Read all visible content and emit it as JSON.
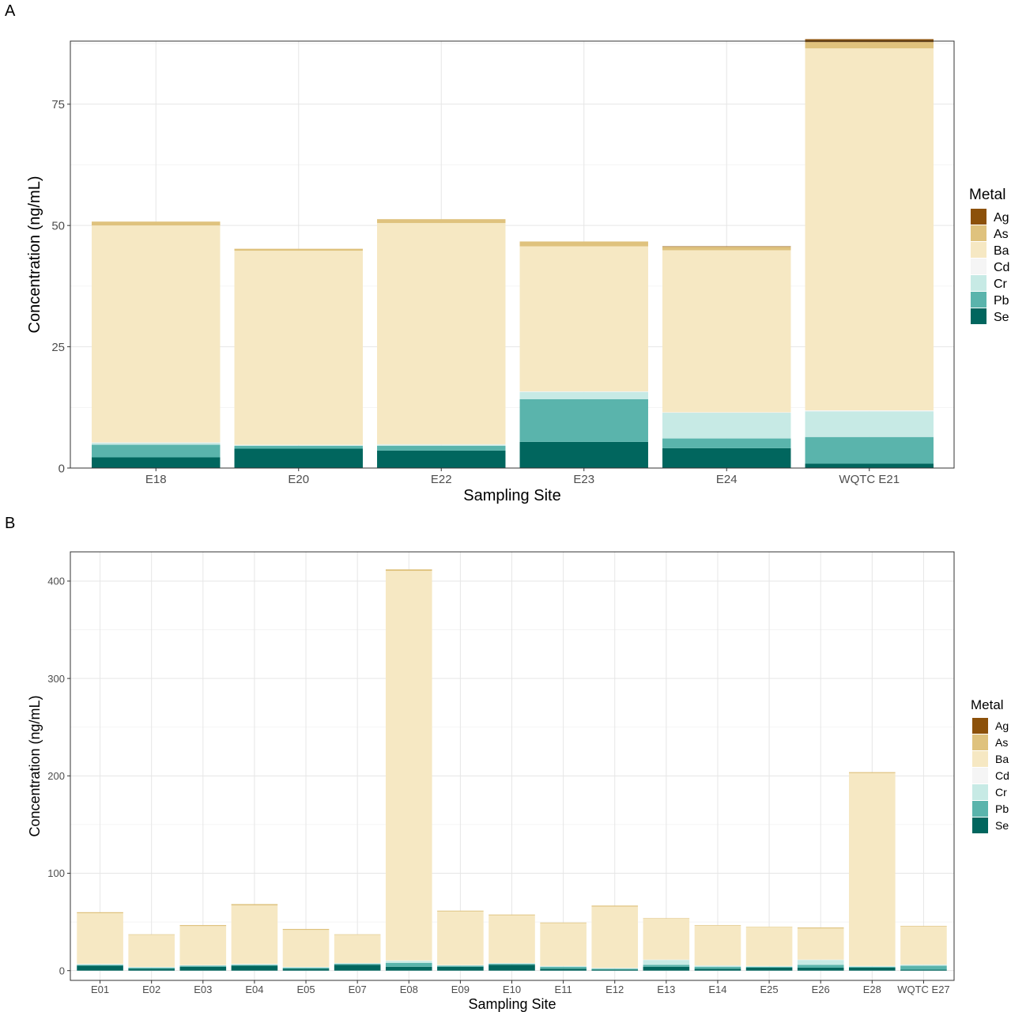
{
  "metal_colors": {
    "Ag": "#8c510a",
    "As": "#dfc27d",
    "Ba": "#f6e8c3",
    "Cd": "#f5f5f5",
    "Cr": "#c7eae5",
    "Pb": "#5ab4ac",
    "Se": "#01665e"
  },
  "chart_data": [
    {
      "panel_label": "A",
      "type": "bar",
      "stacked": true,
      "xlabel": "Sampling Site",
      "ylabel": "Concentration (ng/mL)",
      "ylim": [
        0,
        88
      ],
      "yticks": [
        0,
        25,
        50,
        75
      ],
      "grid": true,
      "legend_title": "Metal",
      "legend_position": "right",
      "categories": [
        "E18",
        "E20",
        "E22",
        "E23",
        "E24",
        "WQTC E21"
      ],
      "series": [
        {
          "name": "Se",
          "values": [
            2.2,
            4.0,
            3.6,
            5.4,
            4.1,
            0.9
          ]
        },
        {
          "name": "Pb",
          "values": [
            2.6,
            0.6,
            1.0,
            8.8,
            2.0,
            5.5
          ]
        },
        {
          "name": "Cr",
          "values": [
            0.4,
            0.1,
            0.2,
            1.5,
            5.3,
            5.3
          ]
        },
        {
          "name": "Cd",
          "values": [
            0.1,
            0.1,
            0.1,
            0.1,
            0.1,
            0.2
          ]
        },
        {
          "name": "Ba",
          "values": [
            44.7,
            40.0,
            45.6,
            29.9,
            33.4,
            74.6
          ]
        },
        {
          "name": "As",
          "values": [
            0.8,
            0.4,
            0.8,
            1.0,
            0.7,
            1.3
          ]
        },
        {
          "name": "Ag",
          "values": [
            0.0,
            0.0,
            0.0,
            0.0,
            0.1,
            0.6
          ]
        }
      ]
    },
    {
      "panel_label": "B",
      "type": "bar",
      "stacked": true,
      "xlabel": "Sampling Site",
      "ylabel": "Concentration (ng/mL)",
      "ylim": [
        -10,
        430
      ],
      "yticks": [
        0,
        100,
        200,
        300,
        400
      ],
      "grid": true,
      "legend_title": "Metal",
      "legend_position": "right",
      "categories": [
        "E01",
        "E02",
        "E03",
        "E04",
        "E05",
        "E07",
        "E08",
        "E09",
        "E10",
        "E11",
        "E12",
        "E13",
        "E14",
        "E25",
        "E26",
        "E28",
        "WQTC E27"
      ],
      "series": [
        {
          "name": "Se",
          "values": [
            5,
            2,
            4,
            5,
            2,
            6,
            4,
            4,
            6,
            2,
            1,
            4,
            2,
            3,
            3,
            3,
            1
          ]
        },
        {
          "name": "Pb",
          "values": [
            1,
            1,
            1,
            1,
            1,
            1,
            4,
            1,
            1,
            2,
            1,
            2,
            2,
            1,
            3,
            1,
            4
          ]
        },
        {
          "name": "Cr",
          "values": [
            0.5,
            0.5,
            0.5,
            0.5,
            0.5,
            0.5,
            2,
            0.5,
            0.5,
            0.5,
            0.5,
            5,
            1,
            0.5,
            5,
            0.5,
            1
          ]
        },
        {
          "name": "Cd",
          "values": [
            0.5,
            0.3,
            0.3,
            0.5,
            0.3,
            0.3,
            0.5,
            0.3,
            0.3,
            0.3,
            0.3,
            0.3,
            0.3,
            0.3,
            0.3,
            0.3,
            0.3
          ]
        },
        {
          "name": "Ba",
          "values": [
            52,
            33,
            40,
            60,
            38,
            29,
            400,
            55,
            49,
            44,
            63,
            42,
            41,
            40,
            32,
            198,
            39
          ]
        },
        {
          "name": "As",
          "values": [
            1,
            0.5,
            1,
            1.3,
            1,
            0.5,
            1.5,
            0.8,
            0.8,
            0.6,
            1,
            0.5,
            0.5,
            0.3,
            1,
            1,
            0.6
          ]
        },
        {
          "name": "Ag",
          "values": [
            0,
            0,
            0,
            0,
            0,
            0,
            0,
            0,
            0,
            0,
            0,
            0,
            0,
            0,
            0,
            0,
            0
          ]
        }
      ]
    }
  ]
}
